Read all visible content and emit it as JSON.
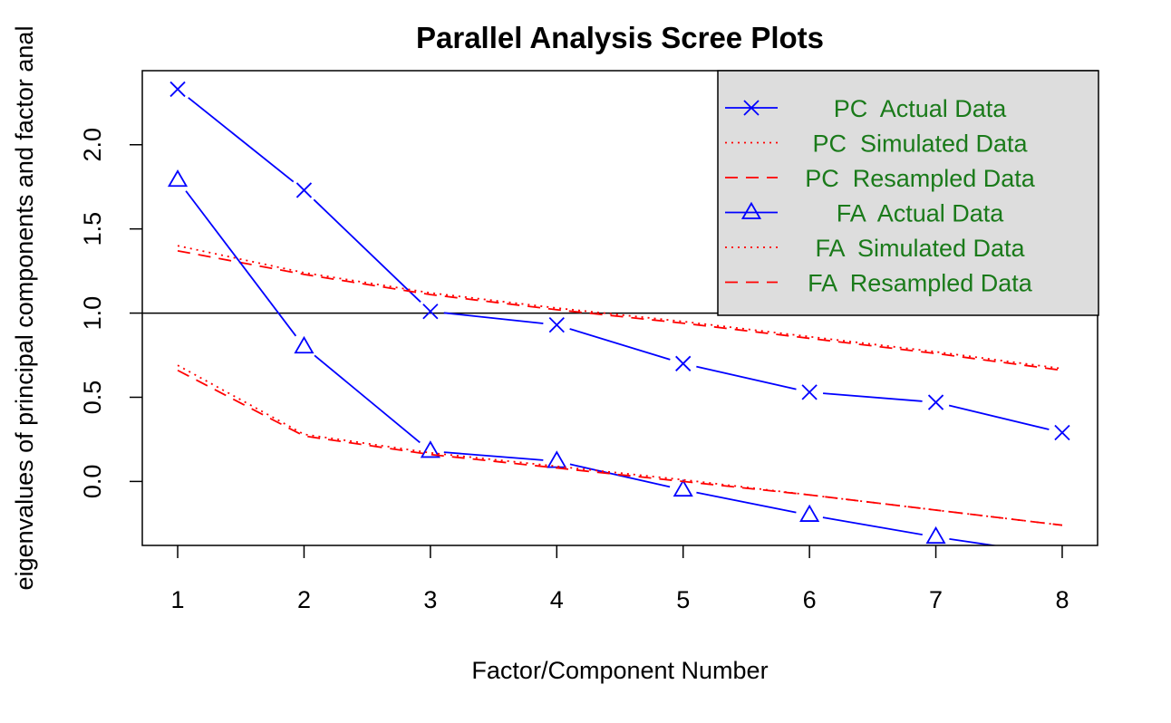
{
  "chart_data": {
    "type": "line",
    "title": "Parallel Analysis Scree Plots",
    "xlabel": "Factor/Component Number",
    "ylabel": "eigenvalues of principal components and factor anal",
    "x": [
      1,
      2,
      3,
      4,
      5,
      6,
      7,
      8
    ],
    "xlim": [
      0.72,
      8.28
    ],
    "ylim": [
      -0.38,
      2.44
    ],
    "x_ticks": [
      "1",
      "2",
      "3",
      "4",
      "5",
      "6",
      "7",
      "8"
    ],
    "y_ticks": [
      "0.0",
      "0.5",
      "1.0",
      "1.5",
      "2.0"
    ],
    "y_tick_values": [
      0.0,
      0.5,
      1.0,
      1.5,
      2.0
    ],
    "reference_line": 1.0,
    "legend_position": "top-right",
    "series": [
      {
        "name": "PC  Actual Data",
        "values": [
          2.33,
          1.73,
          1.01,
          0.93,
          0.7,
          0.53,
          0.47,
          0.29
        ],
        "color": "#0000ff",
        "line": "solid",
        "marker": "cross"
      },
      {
        "name": "PC  Simulated Data",
        "values": [
          1.4,
          1.24,
          1.12,
          1.03,
          0.95,
          0.86,
          0.77,
          0.67
        ],
        "color": "#ff0000",
        "line": "dotted",
        "marker": "none"
      },
      {
        "name": "PC  Resampled Data",
        "values": [
          1.37,
          1.23,
          1.11,
          1.02,
          0.94,
          0.85,
          0.76,
          0.66
        ],
        "color": "#ff0000",
        "line": "dashed",
        "marker": "none"
      },
      {
        "name": "FA  Actual Data",
        "values": [
          1.79,
          0.8,
          0.18,
          0.12,
          -0.05,
          -0.2,
          -0.33,
          -0.44
        ],
        "color": "#0000ff",
        "line": "solid",
        "marker": "triangle"
      },
      {
        "name": "FA  Simulated Data",
        "values": [
          0.69,
          0.28,
          0.17,
          0.09,
          0.01,
          -0.08,
          -0.17,
          -0.26
        ],
        "color": "#ff0000",
        "line": "dotted",
        "marker": "none"
      },
      {
        "name": "FA  Resampled Data",
        "values": [
          0.66,
          0.27,
          0.16,
          0.08,
          0.0,
          -0.08,
          -0.17,
          -0.26
        ],
        "color": "#ff0000",
        "line": "dashed",
        "marker": "none"
      }
    ],
    "legend_background": "#dddddd",
    "legend_text_color": "#1a7a1a"
  }
}
